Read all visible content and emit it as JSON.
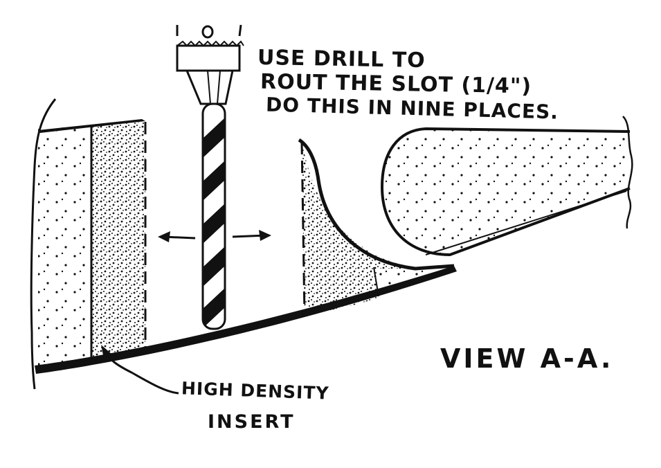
{
  "annotations": {
    "instruction_line_1": "USE DRILL TO",
    "instruction_line_2": "ROUT THE SLOT (1/4\")",
    "instruction_line_3": "DO THIS IN NINE PLACES.",
    "view_label": "VIEW A-A.",
    "insert_label_line_1": "HIGH DENSITY",
    "insert_label_line_2": "INSERT"
  },
  "colors": {
    "ink": "#111111",
    "paper": "#ffffff"
  }
}
